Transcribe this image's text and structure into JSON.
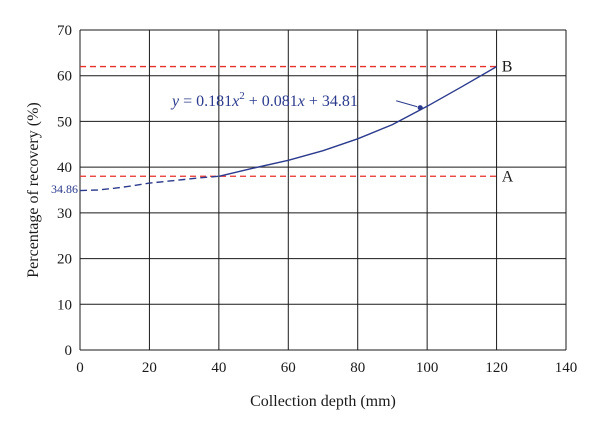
{
  "chart_data": {
    "type": "line",
    "title": "",
    "xlabel": "Collection depth (mm)",
    "ylabel": "Percentage of recovery (%)",
    "xlim": [
      0,
      140
    ],
    "ylim": [
      0,
      70
    ],
    "xticks": [
      0,
      20,
      40,
      60,
      80,
      100,
      120,
      140
    ],
    "yticks": [
      0,
      10,
      20,
      30,
      40,
      50,
      60,
      70
    ],
    "grid": true,
    "fit": {
      "a": 0.181,
      "b": 0.081,
      "c": 34.81,
      "equation_text": {
        "y": "y",
        "eq1": " = 0.181",
        "x1": "x",
        "sup": "2",
        "eq2": " + 0.081",
        "x2": "x",
        "eq3": " + 34.81"
      }
    },
    "series": [
      {
        "style": "dashed",
        "x": [
          0,
          5,
          10,
          15,
          20,
          25,
          30,
          35,
          40
        ],
        "y": [
          34.86,
          35.0,
          35.4,
          35.9,
          36.5,
          36.9,
          37.3,
          37.7,
          38.0
        ]
      },
      {
        "style": "solid",
        "x": [
          40,
          50,
          60,
          70,
          80,
          90,
          100,
          110,
          120
        ],
        "y": [
          38.0,
          39.8,
          41.5,
          43.6,
          46.2,
          49.3,
          53.3,
          57.6,
          62.0
        ]
      }
    ],
    "marker": {
      "x": 98,
      "y": 53
    },
    "intercept_label": "34.86",
    "reference_lines": [
      {
        "label": "A",
        "y": 38
      },
      {
        "label": "B",
        "y": 62
      }
    ],
    "colors": {
      "curve": "#2b3a8c",
      "reference": "#e8302a",
      "grid": "#1a1a1a"
    }
  }
}
